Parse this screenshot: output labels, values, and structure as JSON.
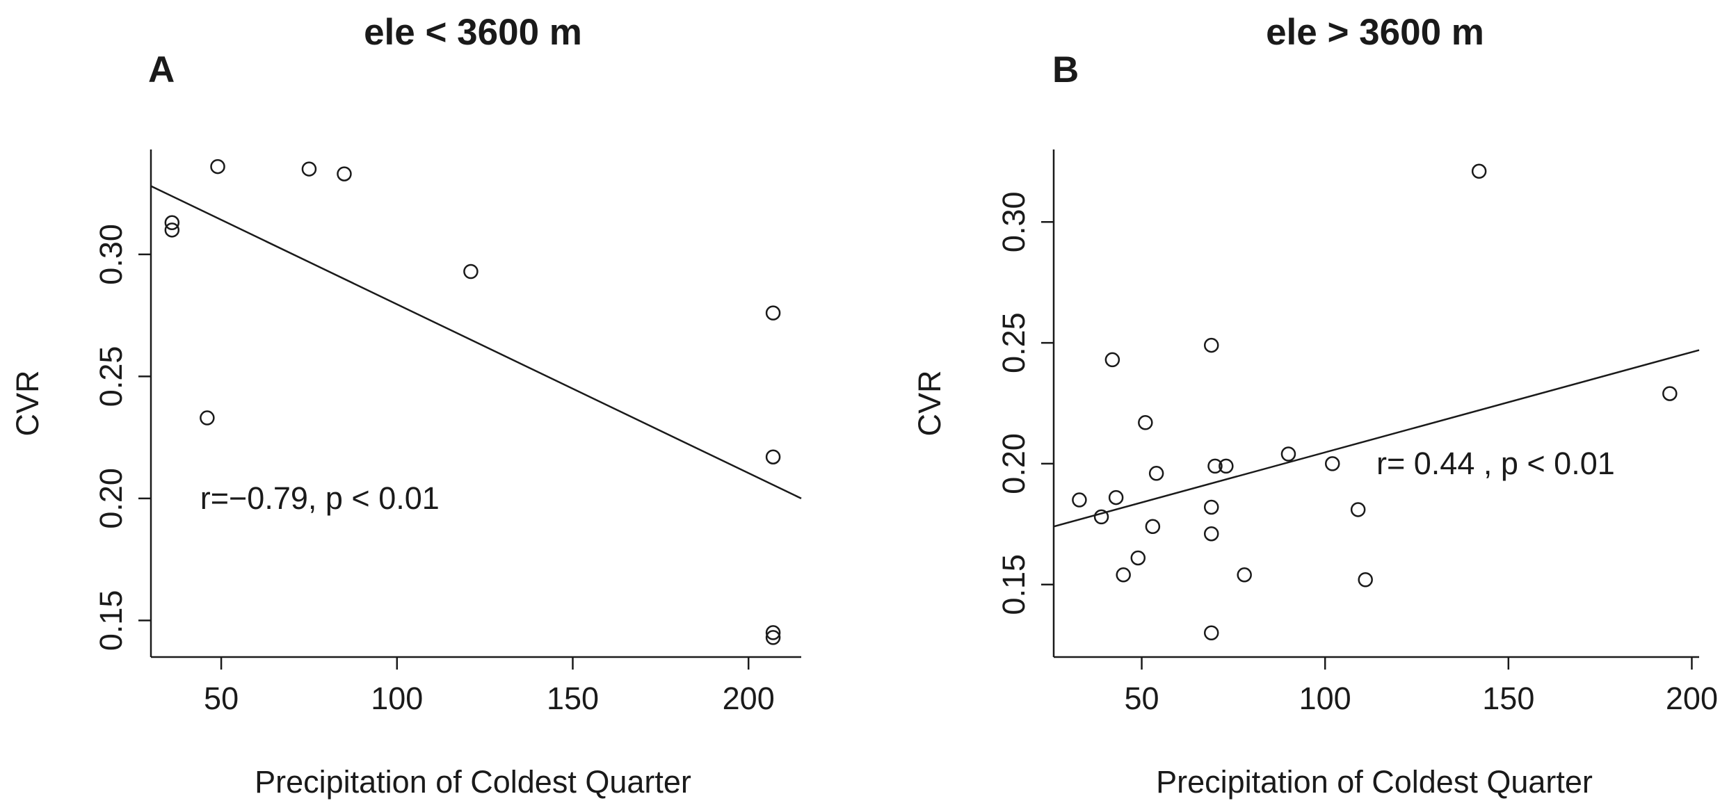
{
  "figure": {
    "colors": {
      "ink": "#1a1a1a",
      "background": "#ffffff"
    }
  },
  "chart_data": [
    {
      "type": "scatter",
      "panel_label": "A",
      "title": "ele < 3600 m",
      "xlabel": "Precipitation of Coldest Quarter",
      "ylabel": "CVR",
      "xlim": [
        30,
        215
      ],
      "ylim": [
        0.135,
        0.343
      ],
      "xticks": [
        50,
        100,
        150,
        200
      ],
      "xtick_labels": [
        "50",
        "100",
        "150",
        "200"
      ],
      "yticks": [
        0.15,
        0.2,
        0.25,
        0.3
      ],
      "ytick_labels": [
        "0.15",
        "0.20",
        "0.25",
        "0.30"
      ],
      "points": [
        {
          "x": 36,
          "y": 0.313
        },
        {
          "x": 36,
          "y": 0.31
        },
        {
          "x": 46,
          "y": 0.233
        },
        {
          "x": 49,
          "y": 0.336
        },
        {
          "x": 75,
          "y": 0.335
        },
        {
          "x": 85,
          "y": 0.333
        },
        {
          "x": 121,
          "y": 0.293
        },
        {
          "x": 207,
          "y": 0.276
        },
        {
          "x": 207,
          "y": 0.217
        },
        {
          "x": 207,
          "y": 0.145
        },
        {
          "x": 207,
          "y": 0.143
        }
      ],
      "fit_line": {
        "x": [
          30,
          215
        ],
        "y": [
          0.328,
          0.2
        ]
      },
      "annotation": "r=−0.79, p < 0.01",
      "annotation_at": {
        "x": 44,
        "y": 0.2
      }
    },
    {
      "type": "scatter",
      "panel_label": "B",
      "title": "ele > 3600 m",
      "xlabel": "Precipitation of Coldest Quarter",
      "ylabel": "CVR",
      "xlim": [
        26,
        202
      ],
      "ylim": [
        0.12,
        0.33
      ],
      "xticks": [
        50,
        100,
        150,
        200
      ],
      "xtick_labels": [
        "50",
        "100",
        "150",
        "200"
      ],
      "yticks": [
        0.15,
        0.2,
        0.25,
        0.3
      ],
      "ytick_labels": [
        "0.15",
        "0.20",
        "0.25",
        "0.30"
      ],
      "points": [
        {
          "x": 33,
          "y": 0.185
        },
        {
          "x": 39,
          "y": 0.178
        },
        {
          "x": 42,
          "y": 0.243
        },
        {
          "x": 43,
          "y": 0.186
        },
        {
          "x": 45,
          "y": 0.154
        },
        {
          "x": 49,
          "y": 0.161
        },
        {
          "x": 51,
          "y": 0.217
        },
        {
          "x": 53,
          "y": 0.174
        },
        {
          "x": 54,
          "y": 0.196
        },
        {
          "x": 69,
          "y": 0.249
        },
        {
          "x": 69,
          "y": 0.182
        },
        {
          "x": 69,
          "y": 0.171
        },
        {
          "x": 69,
          "y": 0.13
        },
        {
          "x": 70,
          "y": 0.199
        },
        {
          "x": 73,
          "y": 0.199
        },
        {
          "x": 78,
          "y": 0.154
        },
        {
          "x": 90,
          "y": 0.204
        },
        {
          "x": 102,
          "y": 0.2
        },
        {
          "x": 109,
          "y": 0.181
        },
        {
          "x": 111,
          "y": 0.152
        },
        {
          "x": 142,
          "y": 0.321
        },
        {
          "x": 194,
          "y": 0.229
        }
      ],
      "fit_line": {
        "x": [
          26,
          202
        ],
        "y": [
          0.174,
          0.247
        ]
      },
      "annotation": "r= 0.44 , p < 0.01",
      "annotation_at": {
        "x": 114,
        "y": 0.2
      }
    }
  ]
}
